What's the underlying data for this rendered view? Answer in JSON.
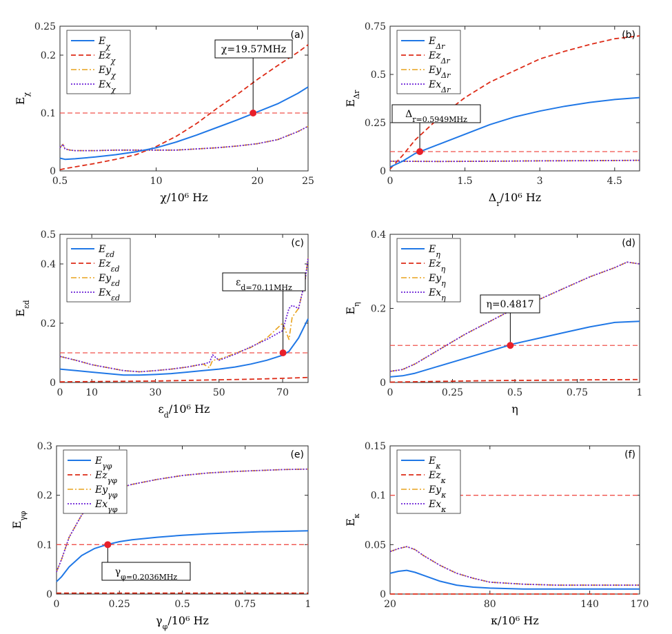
{
  "colors": {
    "E": "#1f77e6",
    "Ez": "#dd2a16",
    "Ey": "#e8a21c",
    "Ex": "#6a1fd6",
    "threshold": "#f0504a",
    "marker": "#e8202a"
  },
  "chart_data": [
    {
      "type": "line",
      "panel_label": "(a)",
      "xlabel": "χ/10⁶ Hz",
      "ylabel": "E_χ",
      "xlim": [
        0.5,
        25
      ],
      "ylim": [
        0,
        0.25
      ],
      "xticks": [
        0.5,
        10,
        20,
        25
      ],
      "xtick_labels": [
        "0.5",
        "10",
        "20",
        "25"
      ],
      "yticks": [
        0,
        0.1,
        0.2,
        0.25
      ],
      "ytick_labels": [
        "0",
        "0.1",
        "0.2",
        "0.25"
      ],
      "threshold": 0.1,
      "marker": {
        "x": 19.57,
        "y": 0.1,
        "label": "χ=19.57MHz"
      },
      "legend_position": "top-left",
      "series": [
        {
          "name": "E_χ",
          "key": "E",
          "x": [
            0.5,
            1,
            2,
            4,
            6,
            8,
            10,
            12,
            14,
            16,
            18,
            20,
            22,
            24,
            25
          ],
          "y": [
            0.022,
            0.02,
            0.021,
            0.024,
            0.028,
            0.033,
            0.04,
            0.05,
            0.062,
            0.075,
            0.088,
            0.102,
            0.116,
            0.134,
            0.145
          ]
        },
        {
          "name": "Ez_χ",
          "key": "Ez",
          "x": [
            0.5,
            1,
            2,
            4,
            6,
            8,
            10,
            12,
            14,
            16,
            18,
            20,
            22,
            24,
            25
          ],
          "y": [
            0.002,
            0.004,
            0.007,
            0.013,
            0.02,
            0.028,
            0.042,
            0.06,
            0.082,
            0.108,
            0.132,
            0.158,
            0.182,
            0.205,
            0.218
          ]
        },
        {
          "name": "Ey_χ",
          "key": "Ey",
          "x": [
            0.5,
            0.8,
            1,
            1.5,
            2,
            4,
            6,
            8,
            10,
            12,
            14,
            16,
            18,
            20,
            22,
            24,
            25
          ],
          "y": [
            0.04,
            0.046,
            0.038,
            0.036,
            0.035,
            0.035,
            0.036,
            0.036,
            0.036,
            0.036,
            0.038,
            0.04,
            0.043,
            0.047,
            0.054,
            0.068,
            0.077
          ]
        },
        {
          "name": "Ex_χ",
          "key": "Ex",
          "x": [
            0.5,
            0.8,
            1,
            1.5,
            2,
            4,
            6,
            8,
            10,
            12,
            14,
            16,
            18,
            20,
            22,
            24,
            25
          ],
          "y": [
            0.04,
            0.046,
            0.038,
            0.036,
            0.035,
            0.035,
            0.036,
            0.036,
            0.036,
            0.036,
            0.038,
            0.04,
            0.043,
            0.047,
            0.054,
            0.068,
            0.077
          ]
        }
      ]
    },
    {
      "type": "line",
      "panel_label": "(b)",
      "xlabel": "Δ_r/10⁶ Hz",
      "ylabel": "E_Δr",
      "xlim": [
        0,
        5
      ],
      "ylim": [
        0,
        0.75
      ],
      "xticks": [
        0,
        1.5,
        3,
        4.5
      ],
      "xtick_labels": [
        "0",
        "1.5",
        "3",
        "4.5"
      ],
      "yticks": [
        0,
        0.25,
        0.5,
        0.75
      ],
      "ytick_labels": [
        "0",
        "0.25",
        "0.5",
        "0.75"
      ],
      "threshold": 0.1,
      "marker": {
        "x": 0.5949,
        "y": 0.1,
        "label": "Δ_r=0.5949MHz"
      },
      "legend_position": "top-left",
      "series": [
        {
          "name": "E_Δr",
          "key": "E",
          "x": [
            0,
            0.25,
            0.5,
            1,
            1.5,
            2,
            2.5,
            3,
            3.5,
            4,
            4.5,
            5
          ],
          "y": [
            0.02,
            0.05,
            0.09,
            0.14,
            0.19,
            0.24,
            0.28,
            0.31,
            0.335,
            0.355,
            0.37,
            0.38
          ]
        },
        {
          "name": "Ez_Δr",
          "key": "Ez",
          "x": [
            0,
            0.25,
            0.5,
            1,
            1.5,
            2,
            2.5,
            3,
            3.5,
            4,
            4.5,
            5
          ],
          "y": [
            0.01,
            0.08,
            0.16,
            0.28,
            0.38,
            0.46,
            0.52,
            0.58,
            0.62,
            0.655,
            0.685,
            0.7
          ]
        },
        {
          "name": "Ey_Δr",
          "key": "Ey",
          "x": [
            0,
            1,
            2,
            3,
            4,
            5
          ],
          "y": [
            0.05,
            0.049,
            0.05,
            0.052,
            0.053,
            0.055
          ]
        },
        {
          "name": "Ex_Δr",
          "key": "Ex",
          "x": [
            0,
            1,
            2,
            3,
            4,
            5
          ],
          "y": [
            0.05,
            0.049,
            0.05,
            0.052,
            0.053,
            0.055
          ]
        }
      ]
    },
    {
      "type": "line",
      "panel_label": "(c)",
      "xlabel": "ε_d/10⁶ Hz",
      "ylabel": "E_εd",
      "xlim": [
        0,
        78
      ],
      "ylim": [
        0,
        0.5
      ],
      "xticks": [
        0,
        10,
        30,
        50,
        70
      ],
      "xtick_labels": [
        "0",
        "10",
        "30",
        "50",
        "70"
      ],
      "yticks": [
        0,
        0.2,
        0.4,
        0.5
      ],
      "ytick_labels": [
        "0",
        "0.2",
        "0.4",
        "0.5"
      ],
      "threshold": 0.1,
      "marker": {
        "x": 70.11,
        "y": 0.1,
        "label": "ε_d=70.11MHz"
      },
      "legend_position": "top-left",
      "series": [
        {
          "name": "E_εd",
          "key": "E",
          "x": [
            0,
            5,
            10,
            15,
            20,
            25,
            30,
            35,
            40,
            45,
            50,
            55,
            60,
            65,
            70,
            72,
            75,
            78
          ],
          "y": [
            0.045,
            0.04,
            0.035,
            0.03,
            0.025,
            0.025,
            0.027,
            0.03,
            0.035,
            0.04,
            0.045,
            0.052,
            0.062,
            0.075,
            0.092,
            0.105,
            0.15,
            0.215
          ]
        },
        {
          "name": "Ez_εd",
          "key": "Ez",
          "x": [
            0,
            10,
            20,
            30,
            40,
            50,
            60,
            70,
            78
          ],
          "y": [
            0.002,
            0.003,
            0.004,
            0.005,
            0.007,
            0.009,
            0.011,
            0.014,
            0.017
          ]
        },
        {
          "name": "Ey_εd",
          "key": "Ey",
          "x": [
            0,
            5,
            10,
            15,
            20,
            25,
            30,
            35,
            40,
            45,
            47,
            48,
            50,
            55,
            60,
            65,
            70,
            72,
            73,
            75,
            77,
            78
          ],
          "y": [
            0.088,
            0.075,
            0.06,
            0.05,
            0.04,
            0.036,
            0.04,
            0.045,
            0.052,
            0.062,
            0.05,
            0.075,
            0.078,
            0.098,
            0.118,
            0.15,
            0.2,
            0.145,
            0.22,
            0.25,
            0.34,
            0.42
          ]
        },
        {
          "name": "Ex_εd",
          "key": "Ex",
          "x": [
            0,
            5,
            10,
            15,
            20,
            25,
            30,
            35,
            40,
            45,
            47,
            48,
            50,
            55,
            60,
            65,
            70,
            72,
            73,
            75,
            77,
            78
          ],
          "y": [
            0.088,
            0.075,
            0.06,
            0.05,
            0.04,
            0.036,
            0.04,
            0.045,
            0.052,
            0.062,
            0.068,
            0.093,
            0.075,
            0.095,
            0.12,
            0.145,
            0.175,
            0.25,
            0.26,
            0.25,
            0.34,
            0.42
          ]
        }
      ]
    },
    {
      "type": "line",
      "panel_label": "(d)",
      "xlabel": "η",
      "ylabel": "E_η",
      "xlim": [
        0,
        1
      ],
      "ylim": [
        0,
        0.4
      ],
      "xticks": [
        0,
        0.25,
        0.5,
        0.75,
        1
      ],
      "xtick_labels": [
        "0",
        "0.25",
        "0.5",
        "0.75",
        "1"
      ],
      "yticks": [
        0,
        0.2,
        0.4
      ],
      "ytick_labels": [
        "0",
        "0.2",
        "0.4"
      ],
      "threshold": 0.1,
      "marker": {
        "x": 0.4817,
        "y": 0.1,
        "label": "η=0.4817"
      },
      "legend_position": "top-left",
      "series": [
        {
          "name": "E_η",
          "key": "E",
          "x": [
            0,
            0.05,
            0.1,
            0.2,
            0.3,
            0.4,
            0.5,
            0.6,
            0.7,
            0.8,
            0.9,
            1
          ],
          "y": [
            0.015,
            0.018,
            0.025,
            0.045,
            0.065,
            0.085,
            0.105,
            0.12,
            0.135,
            0.15,
            0.162,
            0.165
          ]
        },
        {
          "name": "Ez_η",
          "key": "Ez",
          "x": [
            0,
            0.2,
            0.4,
            0.6,
            0.8,
            1
          ],
          "y": [
            0.001,
            0.003,
            0.005,
            0.006,
            0.007,
            0.008
          ]
        },
        {
          "name": "Ey_η",
          "key": "Ey",
          "x": [
            0,
            0.05,
            0.1,
            0.2,
            0.3,
            0.4,
            0.5,
            0.6,
            0.7,
            0.8,
            0.9,
            0.95,
            1
          ],
          "y": [
            0.03,
            0.035,
            0.05,
            0.09,
            0.13,
            0.165,
            0.2,
            0.225,
            0.255,
            0.285,
            0.31,
            0.325,
            0.32
          ]
        },
        {
          "name": "Ex_η",
          "key": "Ex",
          "x": [
            0,
            0.05,
            0.1,
            0.2,
            0.3,
            0.4,
            0.5,
            0.6,
            0.7,
            0.8,
            0.9,
            0.95,
            1
          ],
          "y": [
            0.03,
            0.035,
            0.05,
            0.09,
            0.13,
            0.165,
            0.2,
            0.225,
            0.255,
            0.285,
            0.31,
            0.325,
            0.32
          ]
        }
      ]
    },
    {
      "type": "line",
      "panel_label": "(e)",
      "xlabel": "γ_φ/10⁶ Hz",
      "ylabel": "E_γφ",
      "xlim": [
        0,
        1
      ],
      "ylim": [
        0,
        0.3
      ],
      "xticks": [
        0,
        0.25,
        0.5,
        0.75,
        1
      ],
      "xtick_labels": [
        "0",
        "0.25",
        "0.5",
        "0.75",
        "1"
      ],
      "yticks": [
        0,
        0.1,
        0.2,
        0.3
      ],
      "ytick_labels": [
        "0",
        "0.1",
        "0.2",
        "0.3"
      ],
      "threshold": 0.1,
      "marker": {
        "x": 0.2036,
        "y": 0.1,
        "label": "γ_φ=0.2036MHz"
      },
      "legend_position": "top-left",
      "series": [
        {
          "name": "E_γφ",
          "key": "E",
          "x": [
            0,
            0.02,
            0.05,
            0.1,
            0.15,
            0.2,
            0.25,
            0.3,
            0.4,
            0.5,
            0.6,
            0.7,
            0.8,
            0.9,
            1
          ],
          "y": [
            0.025,
            0.035,
            0.055,
            0.078,
            0.092,
            0.1,
            0.106,
            0.11,
            0.115,
            0.119,
            0.122,
            0.124,
            0.126,
            0.127,
            0.128
          ]
        },
        {
          "name": "Ez_γφ",
          "key": "Ez",
          "x": [
            0,
            0.5,
            1
          ],
          "y": [
            0.002,
            0.002,
            0.002
          ]
        },
        {
          "name": "Ey_γφ",
          "key": "Ey",
          "x": [
            0,
            0.02,
            0.05,
            0.1,
            0.15,
            0.2,
            0.25,
            0.3,
            0.4,
            0.5,
            0.6,
            0.7,
            0.8,
            0.9,
            1
          ],
          "y": [
            0.045,
            0.07,
            0.115,
            0.16,
            0.19,
            0.205,
            0.215,
            0.222,
            0.232,
            0.24,
            0.245,
            0.248,
            0.25,
            0.252,
            0.253
          ]
        },
        {
          "name": "Ex_γφ",
          "key": "Ex",
          "x": [
            0,
            0.02,
            0.05,
            0.1,
            0.15,
            0.2,
            0.25,
            0.3,
            0.4,
            0.5,
            0.6,
            0.7,
            0.8,
            0.9,
            1
          ],
          "y": [
            0.045,
            0.07,
            0.115,
            0.16,
            0.19,
            0.205,
            0.215,
            0.222,
            0.232,
            0.24,
            0.245,
            0.248,
            0.25,
            0.252,
            0.253
          ]
        }
      ]
    },
    {
      "type": "line",
      "panel_label": "(f)",
      "xlabel": "κ/10⁶ Hz",
      "ylabel": "E_κ",
      "xlim": [
        20,
        170
      ],
      "ylim": [
        0,
        0.15
      ],
      "xticks": [
        20,
        80,
        140,
        170
      ],
      "xtick_labels": [
        "20",
        "80",
        "140",
        "170"
      ],
      "yticks": [
        0,
        0.05,
        0.1,
        0.15
      ],
      "ytick_labels": [
        "0",
        "0.05",
        "0.1",
        "0.15"
      ],
      "threshold": 0.1,
      "marker": null,
      "legend_position": "top-left",
      "series": [
        {
          "name": "E_κ",
          "key": "E",
          "x": [
            20,
            25,
            30,
            35,
            40,
            50,
            60,
            70,
            80,
            100,
            120,
            140,
            170
          ],
          "y": [
            0.021,
            0.023,
            0.024,
            0.022,
            0.019,
            0.013,
            0.009,
            0.007,
            0.006,
            0.005,
            0.005,
            0.005,
            0.005
          ]
        },
        {
          "name": "Ez_κ",
          "key": "Ez",
          "x": [
            20,
            170
          ],
          "y": [
            0,
            0
          ]
        },
        {
          "name": "Ey_κ",
          "key": "Ey",
          "x": [
            20,
            25,
            30,
            35,
            40,
            50,
            60,
            70,
            80,
            100,
            120,
            140,
            170
          ],
          "y": [
            0.043,
            0.046,
            0.048,
            0.045,
            0.039,
            0.029,
            0.021,
            0.016,
            0.012,
            0.01,
            0.009,
            0.009,
            0.009
          ]
        },
        {
          "name": "Ex_κ",
          "key": "Ex",
          "x": [
            20,
            25,
            30,
            35,
            40,
            50,
            60,
            70,
            80,
            100,
            120,
            140,
            170
          ],
          "y": [
            0.043,
            0.046,
            0.048,
            0.045,
            0.039,
            0.029,
            0.021,
            0.016,
            0.012,
            0.01,
            0.009,
            0.009,
            0.009
          ]
        }
      ]
    }
  ]
}
